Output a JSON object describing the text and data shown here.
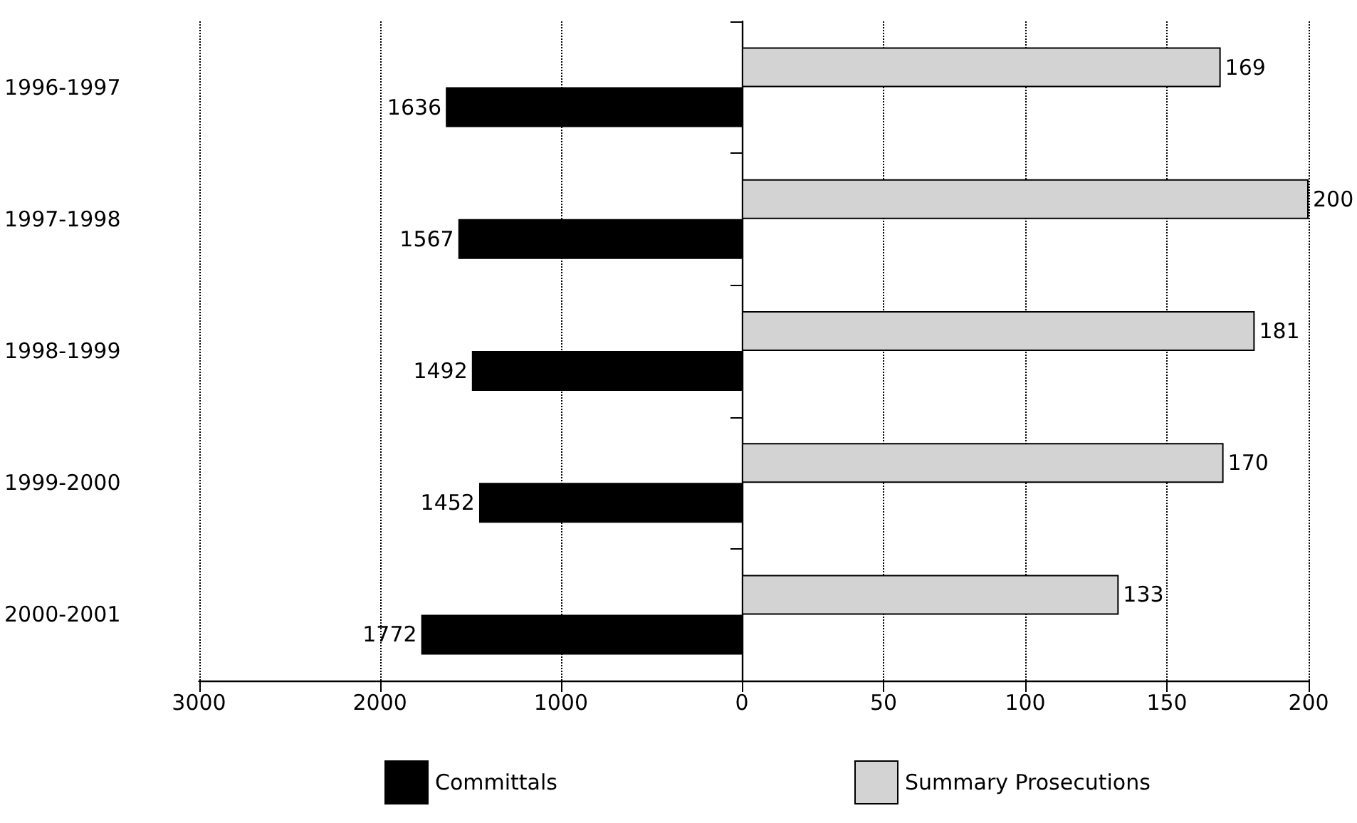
{
  "chart_data": [
    {
      "type": "bar",
      "orientation": "horizontal",
      "categories": [
        "1996-1997",
        "1997-1998",
        "1998-1999",
        "1999-2000",
        "2000-2001"
      ],
      "series": [
        {
          "name": "Committals",
          "color": "#000000",
          "values": [
            1636,
            1567,
            1492,
            1452,
            1772
          ]
        }
      ],
      "xlim": [
        3000,
        0
      ],
      "xticks": [
        3000,
        2000,
        1000
      ],
      "grid": "x",
      "legend": "bottom",
      "data_labels": true
    },
    {
      "type": "bar",
      "orientation": "horizontal",
      "categories": [
        null,
        null,
        null,
        null,
        null
      ],
      "series": [
        {
          "name": "Summary Prosecutions",
          "color": "#d3d3d3",
          "values": [
            169,
            200,
            181,
            170,
            133
          ]
        }
      ],
      "xlim": [
        0,
        200
      ],
      "xticks": [
        0,
        50,
        100,
        150,
        200
      ],
      "grid": "x",
      "legend": "bottom",
      "data_labels": true,
      "tick_labels": "x"
    }
  ]
}
